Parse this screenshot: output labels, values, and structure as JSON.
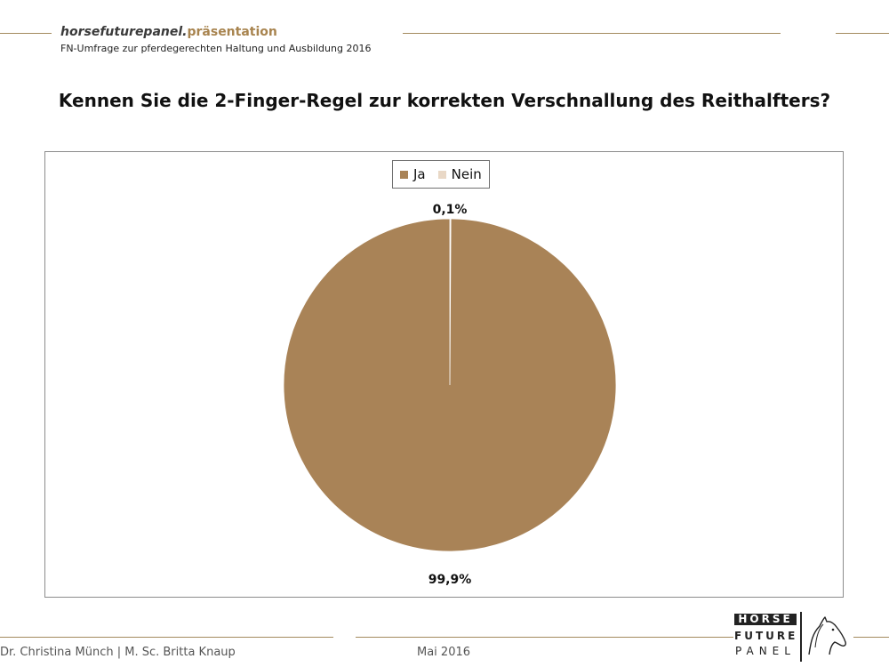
{
  "header": {
    "brand_main": "horsefuturepanel.",
    "brand_accent": "präsentation",
    "subtitle": "FN-Umfrage zur pferdegerechten Haltung und Ausbildung 2016"
  },
  "question": "Kennen Sie die 2-Finger-Regel zur korrekten Verschnallung des Reithalfters?",
  "chart_data": {
    "type": "pie",
    "categories": [
      "Ja",
      "Nein"
    ],
    "values": [
      99.9,
      0.1
    ],
    "data_labels": [
      "99,9%",
      "0,1%"
    ],
    "colors": [
      "#a98357",
      "#e9d8c6"
    ],
    "legend_position": "top",
    "title": "",
    "start_angle_deg": 0,
    "direction": "counterclockwise"
  },
  "footer": {
    "authors": "Dr. Christina Münch | M. Sc. Britta Knaup",
    "date": "Mai 2016"
  },
  "logo": {
    "line1": "HORSE",
    "line2": "FUTURE",
    "line3": "PANEL",
    "icon": "horse-head-icon"
  },
  "colors": {
    "rule": "#a48a5e",
    "accent": "#a8844f"
  }
}
